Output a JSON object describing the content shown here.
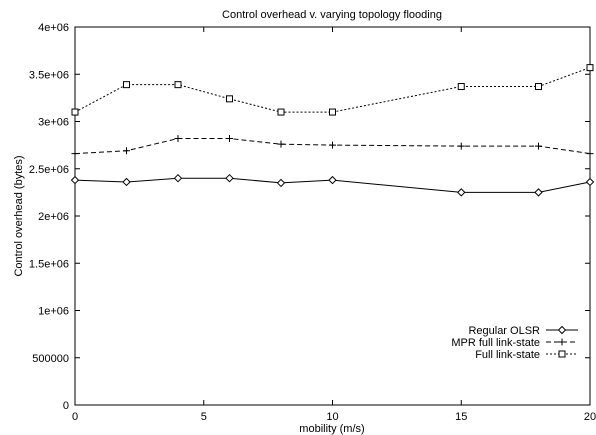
{
  "chart_data": {
    "type": "line",
    "title": "Control overhead v. varying topology flooding",
    "xlabel": "mobility (m/s)",
    "ylabel": "Control overhead (bytes)",
    "xlim": [
      0,
      20
    ],
    "ylim": [
      0,
      4000000
    ],
    "x_ticks": [
      0,
      5,
      10,
      15,
      20
    ],
    "x_tick_labels": [
      "0",
      "5",
      "10",
      "15",
      "20"
    ],
    "y_ticks": [
      0,
      500000,
      1000000,
      1500000,
      2000000,
      2500000,
      3000000,
      3500000,
      4000000
    ],
    "y_tick_labels": [
      "0",
      "500000",
      "1e+06",
      "1.5e+06",
      "2e+06",
      "2.5e+06",
      "3e+06",
      "3.5e+06",
      "4e+06"
    ],
    "grid": false,
    "legend_position": "bottom-right",
    "x": [
      0,
      2,
      4,
      6,
      8,
      10,
      15,
      18,
      20
    ],
    "series": [
      {
        "name": "Regular OLSR",
        "marker": "diamond",
        "dash": "solid",
        "values": [
          2380000,
          2360000,
          2400000,
          2400000,
          2350000,
          2380000,
          2250000,
          2250000,
          2360000
        ]
      },
      {
        "name": "MPR full link-state",
        "marker": "plus",
        "dash": "dashed",
        "values": [
          2660000,
          2690000,
          2820000,
          2820000,
          2760000,
          2750000,
          2740000,
          2740000,
          2660000
        ]
      },
      {
        "name": "Full link-state",
        "marker": "square",
        "dash": "dotted",
        "values": [
          3100000,
          3390000,
          3390000,
          3240000,
          3100000,
          3100000,
          3370000,
          3370000,
          3570000
        ]
      }
    ]
  }
}
